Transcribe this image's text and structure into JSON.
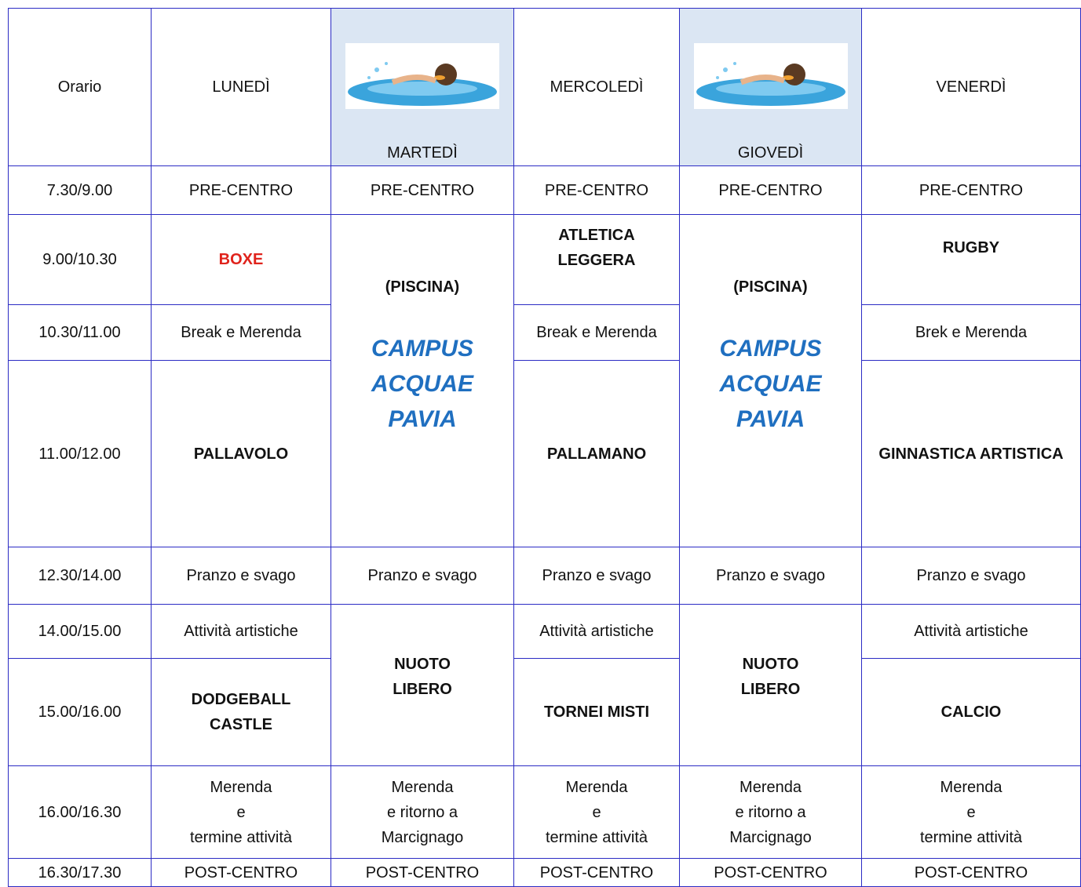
{
  "table": {
    "header": [
      "Orario",
      "LUNEDÌ",
      "MARTEDÌ",
      "MERCOLEDÌ",
      "GIOVEDÌ",
      "VENERDÌ"
    ],
    "rows": [
      [
        "7.30/9.00",
        "PRE-CENTRO",
        "PRE-CENTRO",
        "PRE-CENTRO",
        "PRE-CENTRO",
        "PRE-CENTRO"
      ],
      [
        "9.00/10.30",
        "BOXE",
        {
          "note": "(PISCINA)",
          "place": "CAMPUS\nACQUAE\nPAVIA"
        },
        "ATLETICA\nLEGGERA",
        {
          "note": "(PISCINA)",
          "place": "CAMPUS\nACQUAE\nPAVIA"
        },
        "RUGBY"
      ],
      [
        "10.30/11.00",
        "Break e Merenda",
        "Break e Merenda",
        "Brek e Merenda"
      ],
      [
        "11.00/12.00",
        "PALLAVOLO",
        "PALLAMANO",
        "GINNASTICA ARTISTICA"
      ],
      [
        "12.30/14.00",
        "Pranzo e svago",
        "Pranzo e svago",
        "Pranzo e svago",
        "Pranzo e svago",
        "Pranzo e svago"
      ],
      [
        "14.00/15.00",
        "Attività artistiche",
        "NUOTO\nLIBERO",
        "Attività artistiche",
        "NUOTO\nLIBERO",
        "Attività artistiche"
      ],
      [
        "15.00/16.00",
        "DODGEBALL\nCASTLE",
        "TORNEI MISTI",
        "CALCIO"
      ],
      [
        "16.00/16.30",
        "Merenda\ne\ntermine attività",
        "Merenda\ne ritorno a\nMarcignago",
        "Merenda\ne\ntermine attività",
        "Merenda\ne ritorno a\nMarcignago",
        "Merenda\ne\ntermine attività"
      ],
      [
        "16.30/17.30",
        "POST-CENTRO",
        "POST-CENTRO",
        "POST-CENTRO",
        "POST-CENTRO",
        "POST-CENTRO"
      ]
    ]
  }
}
